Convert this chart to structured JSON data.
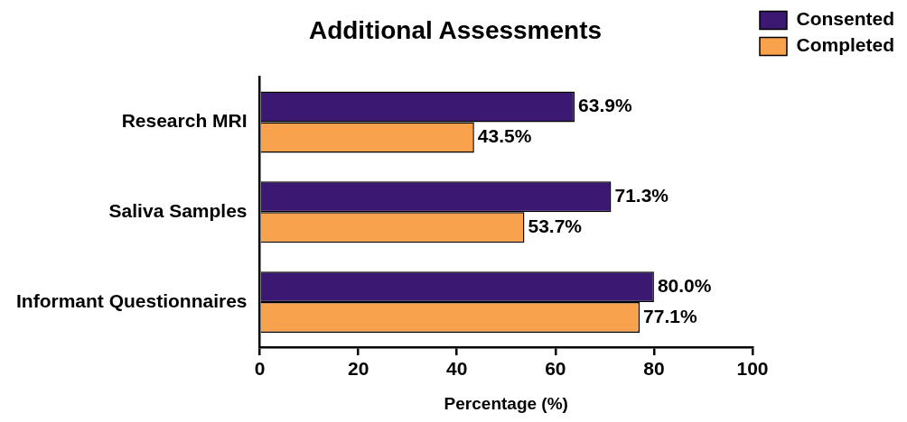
{
  "chart_data": {
    "type": "bar",
    "orientation": "horizontal",
    "title": "Additional Assessments",
    "xlabel": "Percentage (%)",
    "categories": [
      "Research MRI",
      "Saliva Samples",
      "Informant Questionnaires"
    ],
    "series": [
      {
        "name": "Consented",
        "color": "#3b1872",
        "values": [
          63.9,
          71.3,
          80.0
        ],
        "value_labels": [
          "63.9%",
          "71.3%",
          "80.0%"
        ]
      },
      {
        "name": "Completed",
        "color": "#f9a24e",
        "values": [
          43.5,
          53.7,
          77.1
        ],
        "value_labels": [
          "43.5%",
          "53.7%",
          "77.1%"
        ]
      }
    ],
    "xlim": [
      0,
      100
    ],
    "xticks": [
      0,
      20,
      40,
      60,
      80,
      100
    ],
    "grid": false,
    "legend": "top right"
  }
}
